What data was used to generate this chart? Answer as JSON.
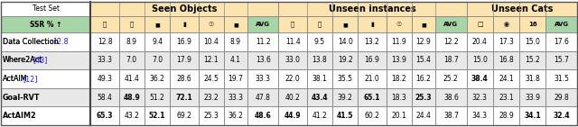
{
  "rows": [
    [
      "Data Collection",
      "12.8",
      "8.9",
      "9.4",
      "16.9",
      "10.4",
      "8.9",
      "11.2",
      "11.4",
      "9.5",
      "14.0",
      "13.2",
      "11.9",
      "12.9",
      "12.2",
      "20.4",
      "17.3",
      "15.0",
      "17.6"
    ],
    [
      "Where2Act",
      "[43]",
      "33.3",
      "7.0",
      "7.0",
      "17.9",
      "12.1",
      "4.1",
      "13.6",
      "33.0",
      "13.8",
      "19.2",
      "16.9",
      "13.9",
      "15.4",
      "18.7",
      "15.0",
      "16.8",
      "15.2",
      "15.7"
    ],
    [
      "ActAIM",
      "[12]",
      "49.3",
      "41.4",
      "36.2",
      "28.6",
      "24.5",
      "19.7",
      "33.3",
      "22.0",
      "38.1",
      "35.5",
      "21.0",
      "18.2",
      "16.2",
      "25.2",
      "38.4",
      "24.1",
      "31.8",
      "31.5"
    ],
    [
      "Goal-RVT",
      "",
      "58.4",
      "48.9",
      "51.2",
      "72.1",
      "23.2",
      "33.3",
      "47.8",
      "40.2",
      "43.4",
      "39.2",
      "65.1",
      "18.3",
      "25.3",
      "38.6",
      "32.3",
      "23.1",
      "33.9",
      "29.8"
    ],
    [
      "ActAIM2",
      "",
      "65.3",
      "43.2",
      "52.1",
      "69.2",
      "25.3",
      "36.2",
      "48.6",
      "44.9",
      "41.2",
      "41.5",
      "60.2",
      "20.1",
      "24.4",
      "38.7",
      "34.3",
      "28.9",
      "34.1",
      "32.4"
    ]
  ],
  "bold_cells": {
    "0": [],
    "1": [],
    "2": [
      16
    ],
    "3": [
      3,
      5,
      9,
      11,
      13
    ],
    "4": [
      2,
      4,
      8,
      9,
      11,
      17,
      19
    ]
  },
  "bold_method": [
    false,
    false,
    false,
    true,
    true
  ],
  "ref_color": "#1a1aff",
  "seen_bg": "#fce4b0",
  "unseen_bg": "#fce4b0",
  "cats_bg": "#fce4b0",
  "green_bg": "#a8d5a8",
  "white": "#ffffff",
  "alt_row": "#e8e8e8",
  "row_bgs": [
    "#ffffff",
    "#e8e8e8",
    "#ffffff",
    "#e8e8e8",
    "#ffffff"
  ],
  "border_color": "#777777"
}
